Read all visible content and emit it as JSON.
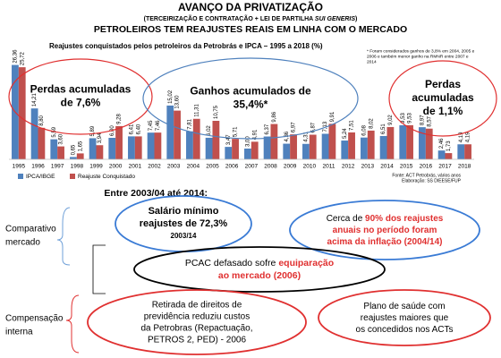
{
  "header": {
    "title": "AVANÇO DA PRIVATIZAÇÃO",
    "subtitle": [
      "(TERCEIRIZAÇÃO E CONTRATAÇÃO + LEI DE PARTILHA ",
      "SUI GENERIS",
      ")"
    ],
    "headline": "PETROLEIROS TEM REAJUSTES REAIS EM LINHA COM O MERCADO"
  },
  "chart_data": {
    "type": "bar",
    "title": "Reajustes conquistados pelos petroleiros da Petrobrás e IPCA – 1995 a 2018 (%)",
    "categories": [
      "1995",
      "1996",
      "1997",
      "1998",
      "1999",
      "2000",
      "2001",
      "2002",
      "2003",
      "2004",
      "2005",
      "2006",
      "2007",
      "2008",
      "2009",
      "2010",
      "2011",
      "2012",
      "2013",
      "2014",
      "2015",
      "2016",
      "2017",
      "2018"
    ],
    "series": [
      {
        "name": "IPCA/IBGE",
        "color": "#4f81bd",
        "values": [
          26.36,
          14.21,
          5.59,
          0.65,
          5.89,
          6.0,
          6.41,
          7.45,
          15.02,
          7.81,
          6.02,
          3.47,
          3.0,
          6.37,
          4.36,
          4.31,
          7.13,
          5.24,
          6.08,
          6.51,
          9.53,
          8.97,
          2.46,
          4.19
        ],
        "value_labels": [
          "26,36",
          "14,21",
          "5,59",
          "0,65",
          "5,89",
          "6,00",
          "6,41",
          "7,45",
          "15,02",
          "7,81",
          "6,02",
          "3,47",
          "3,00",
          "6,37",
          "4,36",
          "4,31",
          "7,13",
          "5,24",
          "6,08",
          "6,51",
          "9,53",
          "8,97",
          "2,46",
          "4,19"
        ]
      },
      {
        "name": "Reajuste Conquistado",
        "color": "#c0504d",
        "values": [
          25.72,
          8.8,
          3.6,
          1.65,
          3.94,
          9.28,
          6.4,
          7.46,
          13.6,
          11.31,
          10.75,
          5.71,
          4.91,
          9.86,
          6.97,
          6.87,
          9.91,
          7.51,
          8.02,
          9.02,
          9.53,
          8.57,
          1.73,
          4.19
        ],
        "value_labels": [
          "25,72",
          "8,80",
          "3,60",
          "1,65",
          "3,94",
          "9,28",
          "6,40",
          "7,46",
          "13,60",
          "11,31",
          "10,75",
          "5,71",
          "4,91",
          "9,86",
          "6,97",
          "6,87",
          "9,91",
          "7,51",
          "8,02",
          "9,02",
          "9,53",
          "8,57",
          "1,73",
          "4,19"
        ]
      }
    ],
    "ylim": [
      0,
      30
    ],
    "annotations": [
      {
        "lines": [
          "Perdas acumuladas",
          "de 7,6%"
        ],
        "color": "#e03030"
      },
      {
        "lines": [
          "Ganhos acumulados de",
          "35,4%*"
        ],
        "color": "#4f81bd"
      },
      {
        "lines": [
          "Perdas",
          "acumuladas",
          "de 1,1%"
        ],
        "color": "#e03030"
      }
    ],
    "footnote": [
      "* Foram considerados ganhos de 3,8% em 2004, 2005 e",
      "2006 e também menor ganho na RMNR entre 2007 e",
      "2014"
    ],
    "source": [
      "Fonte: ACT Petrobrás, vários anos",
      "Elaboração: SS DIEESE/FUP"
    ]
  },
  "summary": {
    "heading": "Entre 2003/04 até 2014:",
    "groups": [
      [
        "Comparativo",
        "mercado"
      ],
      [
        "Compensação",
        "interna"
      ]
    ],
    "items": [
      [
        [
          "Salário mínimo"
        ],
        [
          "reajustes de 72,3%"
        ],
        [
          "2003/14"
        ]
      ],
      [
        [
          "Cerca de ",
          "90% dos reajustes"
        ],
        [
          "anuais no período foram"
        ],
        [
          "acima da inflação (2004/14)"
        ]
      ],
      [
        [
          "PCAC defasado sofre ",
          "equiparação"
        ],
        [
          "ao mercado (2006)"
        ]
      ],
      [
        [
          "Retirada de direitos de"
        ],
        [
          "previdência reduziu custos"
        ],
        [
          "da Petrobras (Repactuação,"
        ],
        [
          "PETROS 2, PED) - 2006"
        ]
      ],
      [
        [
          "Plano de saúde com"
        ],
        [
          "reajustes maiores que"
        ],
        [
          "os concedidos nos ACTs"
        ]
      ]
    ]
  }
}
